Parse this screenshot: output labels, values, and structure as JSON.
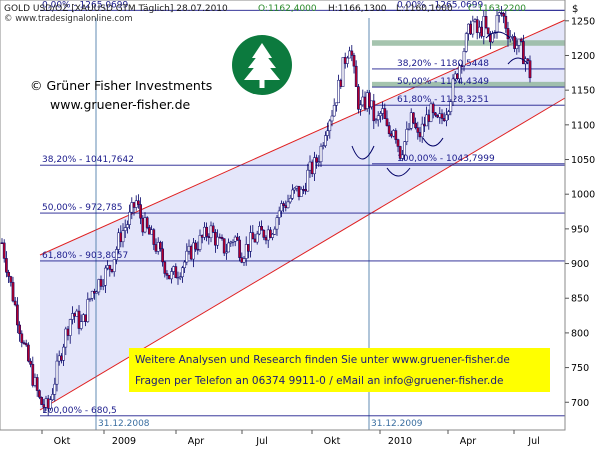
{
  "header": {
    "instrument": "GOLD USD/OZ [XAUUSD GTM  Täglich] 28.07.2010",
    "ohlc_o": "O:1162,4000",
    "ohlc_h": "H:1166,1300",
    "ohlc_l": "L:1160,1000",
    "ohlc_c": "C:1163,2200",
    "source_url": "© www.tradesignalonline.com",
    "currency_symbol": "$"
  },
  "branding": {
    "company": "© Grüner Fisher Investments",
    "website": "www.gruener-fisher.de"
  },
  "info_box": {
    "line1": "Weitere Analysen und Research finden Sie unter www.gruener-fisher.de",
    "line2": "Fragen per Telefon an 06374 9911-0 / eMail an info@gruener-fisher.de"
  },
  "colors": {
    "candle_up": "#ffffff",
    "candle_down": "#b0002c",
    "wick": "#000066",
    "channel": "#e02020",
    "channel_fill": "#e4e6fa",
    "fib_line": "#1a1a8c",
    "resistance_zone": "#8fb59a",
    "info_box_bg": "#ffff00",
    "logo": "#0c7a3e"
  },
  "chart_data": {
    "type": "candlestick",
    "y_axis": {
      "side": "right",
      "ylim": [
        660,
        1280
      ],
      "ticks": [
        700,
        750,
        800,
        850,
        900,
        950,
        1000,
        1050,
        1100,
        1150,
        1200,
        1250
      ]
    },
    "x_axis": {
      "tick_labels": [
        "Okt",
        "2009",
        "Apr",
        "Jul",
        "Okt",
        "2010",
        "Apr",
        "Jul"
      ]
    },
    "date_markers": [
      "31.12.2008",
      "31.12.2009"
    ],
    "fibonacci_left": [
      {
        "label": "0,00% - 1265,0699",
        "value": 1265.07
      },
      {
        "label": "38,20% - 1041,7642",
        "value": 1041.76
      },
      {
        "label": "50,00% - 972,785",
        "value": 972.79
      },
      {
        "label": "61,80% - 903,8057",
        "value": 903.81
      },
      {
        "label": "100,00% - 680,5",
        "value": 680.5
      }
    ],
    "fibonacci_right": [
      {
        "label": "0,00% - 1265,0699",
        "value": 1265.07
      },
      {
        "label": "38,20% - 1180,5448",
        "value": 1180.54
      },
      {
        "label": "50,00% - 1154,4349",
        "value": 1154.43
      },
      {
        "label": "61,80% - 1128,3251",
        "value": 1128.33
      },
      {
        "label": "100,00% - 1043,7999",
        "value": 1043.8
      }
    ],
    "resistance_zones": [
      {
        "low": 1214,
        "high": 1222
      },
      {
        "low": 1155,
        "high": 1162
      }
    ],
    "series": [
      {
        "values": [
          [
            0,
            930
          ],
          [
            10,
            860
          ],
          [
            22,
            780
          ],
          [
            30,
            740
          ],
          [
            38,
            700
          ],
          [
            46,
            690
          ],
          [
            54,
            740
          ],
          [
            62,
            790
          ],
          [
            70,
            830
          ],
          [
            80,
            810
          ],
          [
            90,
            860
          ],
          [
            100,
            880
          ],
          [
            110,
            900
          ],
          [
            118,
            940
          ],
          [
            126,
            960
          ],
          [
            134,
            990
          ],
          [
            140,
            960
          ],
          [
            148,
            940
          ],
          [
            156,
            920
          ],
          [
            162,
            900
          ],
          [
            168,
            880
          ],
          [
            176,
            890
          ],
          [
            184,
            905
          ],
          [
            192,
            925
          ],
          [
            200,
            935
          ],
          [
            208,
            950
          ],
          [
            216,
            930
          ],
          [
            224,
            920
          ],
          [
            232,
            940
          ],
          [
            240,
            915
          ],
          [
            248,
            930
          ],
          [
            256,
            940
          ],
          [
            262,
            945
          ],
          [
            270,
            950
          ],
          [
            278,
            980
          ],
          [
            286,
            990
          ],
          [
            294,
            1005
          ],
          [
            300,
            1000
          ],
          [
            306,
            1030
          ],
          [
            312,
            1040
          ],
          [
            318,
            1060
          ],
          [
            324,
            1100
          ],
          [
            330,
            1120
          ],
          [
            336,
            1150
          ],
          [
            342,
            1190
          ],
          [
            348,
            1220
          ],
          [
            353,
            1160
          ],
          [
            358,
            1120
          ],
          [
            366,
            1140
          ],
          [
            374,
            1100
          ],
          [
            380,
            1120
          ],
          [
            386,
            1085
          ],
          [
            392,
            1100
          ],
          [
            398,
            1060
          ],
          [
            404,
            1080
          ],
          [
            410,
            1110
          ],
          [
            416,
            1080
          ],
          [
            422,
            1100
          ],
          [
            428,
            1120
          ],
          [
            434,
            1100
          ],
          [
            440,
            1110
          ],
          [
            446,
            1130
          ],
          [
            452,
            1160
          ],
          [
            458,
            1190
          ],
          [
            464,
            1220
          ],
          [
            470,
            1250
          ],
          [
            476,
            1230
          ],
          [
            482,
            1245
          ],
          [
            488,
            1215
          ],
          [
            494,
            1250
          ],
          [
            500,
            1262
          ],
          [
            506,
            1235
          ],
          [
            512,
            1220
          ],
          [
            518,
            1210
          ],
          [
            524,
            1195
          ],
          [
            530,
            1163
          ]
        ]
      }
    ]
  }
}
